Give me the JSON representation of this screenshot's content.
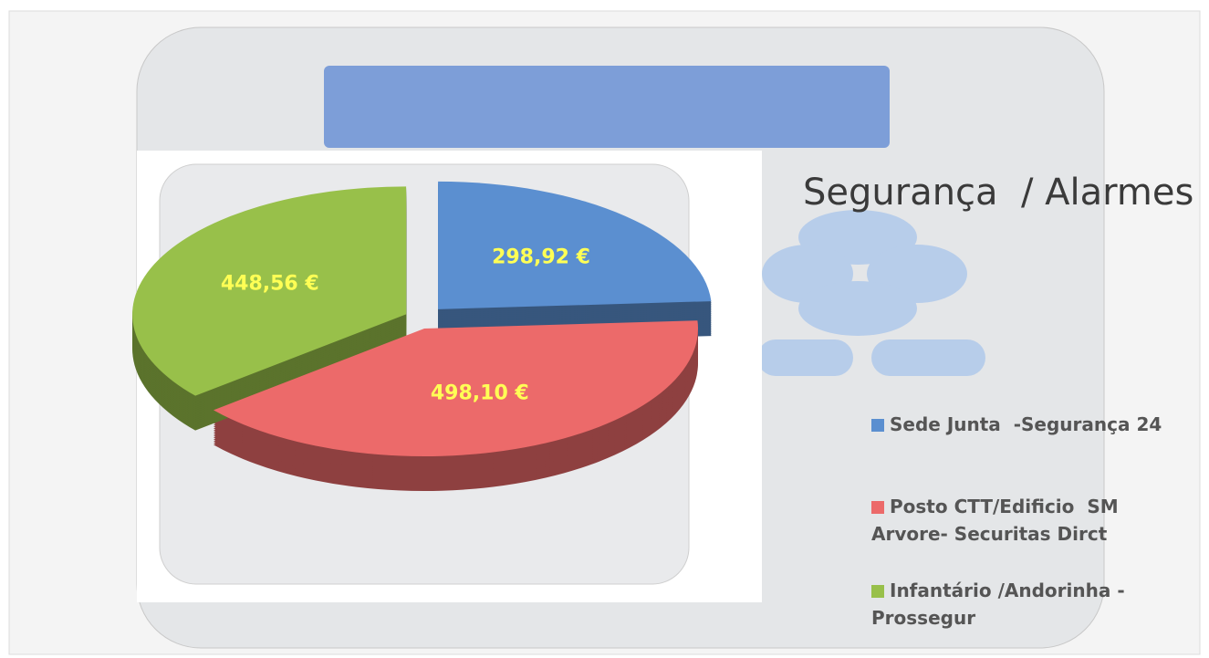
{
  "chart_data": {
    "type": "pie",
    "title": "Segurança  / Alarmes",
    "categories": [
      "Sede Junta  -Segurança 24",
      "Posto CTT/Edificio  SM Arvore- Securitas Dirct",
      "Infantário /Andorinha - Prossegur"
    ],
    "values": [
      298.92,
      498.1,
      448.56
    ],
    "value_labels": [
      "298,92 €",
      "498,10 €",
      "448,56 €"
    ],
    "colors": [
      "#5b8fd0",
      "#ec6a6a",
      "#98c04a"
    ]
  }
}
